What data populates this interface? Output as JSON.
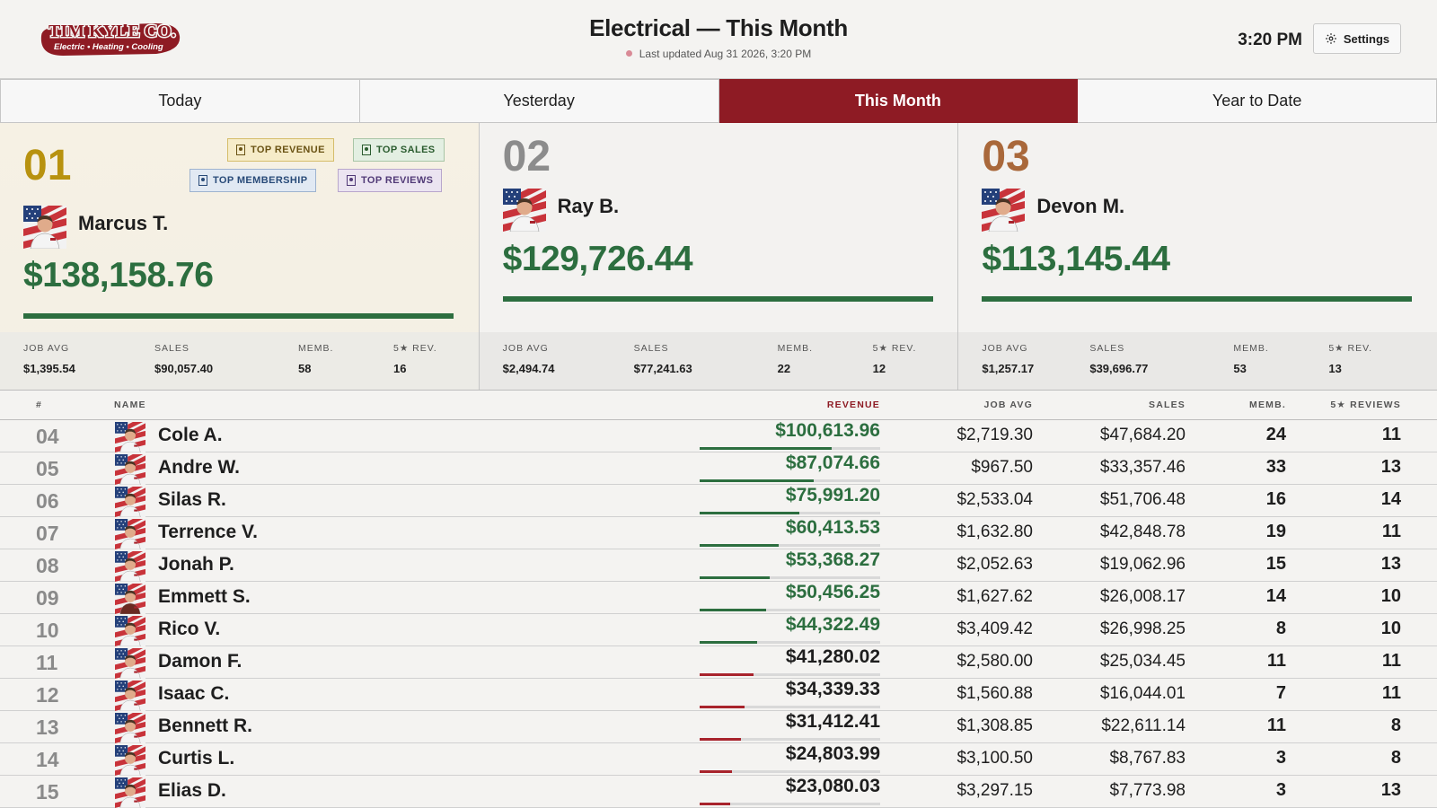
{
  "header": {
    "logo_text": "TIM KYLE CO.",
    "logo_tagline": "Electric • Heating • Cooling",
    "title": "Electrical — This Month",
    "updated": "Last updated Aug 31 2026, 3:20 PM",
    "clock": "3:20 PM",
    "settings_label": "Settings"
  },
  "colors": {
    "brand": "#8e1b24",
    "green": "#2c6e3f",
    "gold": "#b8920f",
    "silver": "#8c8c8c",
    "bronze": "#a9683a"
  },
  "tabs": [
    {
      "label": "Today",
      "active": false
    },
    {
      "label": "Yesterday",
      "active": false
    },
    {
      "label": "This Month",
      "active": true
    },
    {
      "label": "Year to Date",
      "active": false
    }
  ],
  "badges": {
    "top_revenue": "TOP REVENUE",
    "top_sales": "TOP SALES",
    "top_membership": "TOP MEMBERSHIP",
    "top_reviews": "TOP REVIEWS"
  },
  "stat_labels": {
    "job_avg": "JOB AVG",
    "sales": "SALES",
    "memb": "MEMB.",
    "rev": "5★ REV."
  },
  "podium": [
    {
      "rank": "01",
      "name": "Marcus T.",
      "revenue": "$138,158.76",
      "revenue_fraction": 1.0,
      "job_avg": "$1,395.54",
      "sales": "$90,057.40",
      "memb": "58",
      "reviews": "16"
    },
    {
      "rank": "02",
      "name": "Ray B.",
      "revenue": "$129,726.44",
      "revenue_fraction": 1.0,
      "job_avg": "$2,494.74",
      "sales": "$77,241.63",
      "memb": "22",
      "reviews": "12"
    },
    {
      "rank": "03",
      "name": "Devon M.",
      "revenue": "$113,145.44",
      "revenue_fraction": 1.0,
      "job_avg": "$1,257.17",
      "sales": "$39,696.77",
      "memb": "53",
      "reviews": "13"
    }
  ],
  "table": {
    "headers": {
      "rank": "#",
      "name": "NAME",
      "revenue": "REVENUE",
      "job_avg": "JOB AVG",
      "sales": "SALES",
      "memb": "MEMB.",
      "reviews": "5★ REVIEWS"
    },
    "rows": [
      {
        "rank": "04",
        "name": "Cole A.",
        "revenue": "$100,613.96",
        "bar": 0.73,
        "above_target": true,
        "job_avg": "$2,719.30",
        "sales": "$47,684.20",
        "memb": "24",
        "reviews": "11"
      },
      {
        "rank": "05",
        "name": "Andre W.",
        "revenue": "$87,074.66",
        "bar": 0.63,
        "above_target": true,
        "job_avg": "$967.50",
        "sales": "$33,357.46",
        "memb": "33",
        "reviews": "13"
      },
      {
        "rank": "06",
        "name": "Silas R.",
        "revenue": "$75,991.20",
        "bar": 0.55,
        "above_target": true,
        "job_avg": "$2,533.04",
        "sales": "$51,706.48",
        "memb": "16",
        "reviews": "14"
      },
      {
        "rank": "07",
        "name": "Terrence V.",
        "revenue": "$60,413.53",
        "bar": 0.44,
        "above_target": true,
        "job_avg": "$1,632.80",
        "sales": "$42,848.78",
        "memb": "19",
        "reviews": "11"
      },
      {
        "rank": "08",
        "name": "Jonah P.",
        "revenue": "$53,368.27",
        "bar": 0.39,
        "above_target": true,
        "job_avg": "$2,052.63",
        "sales": "$19,062.96",
        "memb": "15",
        "reviews": "13"
      },
      {
        "rank": "09",
        "name": "Emmett S.",
        "revenue": "$50,456.25",
        "bar": 0.37,
        "above_target": true,
        "job_avg": "$1,627.62",
        "sales": "$26,008.17",
        "memb": "14",
        "reviews": "10"
      },
      {
        "rank": "10",
        "name": "Rico V.",
        "revenue": "$44,322.49",
        "bar": 0.32,
        "above_target": true,
        "job_avg": "$3,409.42",
        "sales": "$26,998.25",
        "memb": "8",
        "reviews": "10"
      },
      {
        "rank": "11",
        "name": "Damon F.",
        "revenue": "$41,280.02",
        "bar": 0.3,
        "above_target": false,
        "job_avg": "$2,580.00",
        "sales": "$25,034.45",
        "memb": "11",
        "reviews": "11"
      },
      {
        "rank": "12",
        "name": "Isaac C.",
        "revenue": "$34,339.33",
        "bar": 0.25,
        "above_target": false,
        "job_avg": "$1,560.88",
        "sales": "$16,044.01",
        "memb": "7",
        "reviews": "11"
      },
      {
        "rank": "13",
        "name": "Bennett R.",
        "revenue": "$31,412.41",
        "bar": 0.23,
        "above_target": false,
        "job_avg": "$1,308.85",
        "sales": "$22,611.14",
        "memb": "11",
        "reviews": "8"
      },
      {
        "rank": "14",
        "name": "Curtis L.",
        "revenue": "$24,803.99",
        "bar": 0.18,
        "above_target": false,
        "job_avg": "$3,100.50",
        "sales": "$8,767.83",
        "memb": "3",
        "reviews": "8"
      },
      {
        "rank": "15",
        "name": "Elias D.",
        "revenue": "$23,080.03",
        "bar": 0.17,
        "above_target": false,
        "job_avg": "$3,297.15",
        "sales": "$7,773.98",
        "memb": "3",
        "reviews": "13"
      }
    ]
  }
}
